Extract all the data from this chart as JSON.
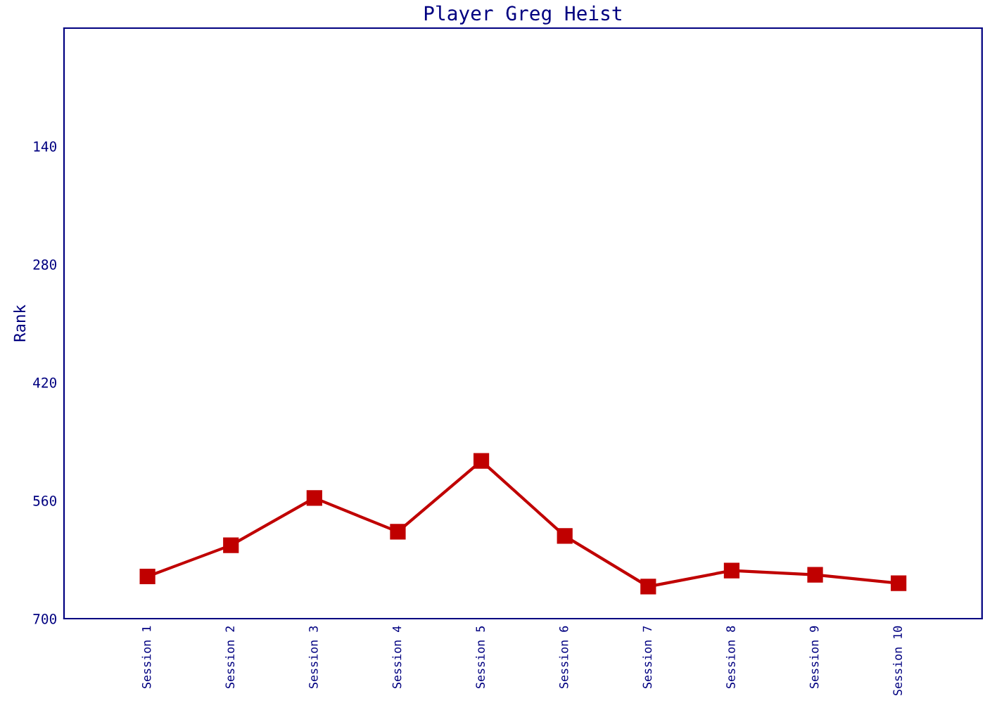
{
  "chart_data": {
    "type": "line",
    "title": "Player Greg Heist",
    "ylabel": "Rank",
    "categories": [
      "Session 1",
      "Session 2",
      "Session 3",
      "Session 4",
      "Session 5",
      "Session 6",
      "Session 7",
      "Session 8",
      "Session 9",
      "Session 10"
    ],
    "series": [
      {
        "color": "#c00000",
        "values": [
          650,
          613,
          557,
          597,
          513,
          602,
          662,
          643,
          648,
          658
        ]
      }
    ],
    "ylim": [
      700,
      0
    ],
    "yticks": [
      140,
      280,
      420,
      560,
      700
    ],
    "marker": "square",
    "line_style": "solid",
    "grid": false,
    "legend": false
  }
}
